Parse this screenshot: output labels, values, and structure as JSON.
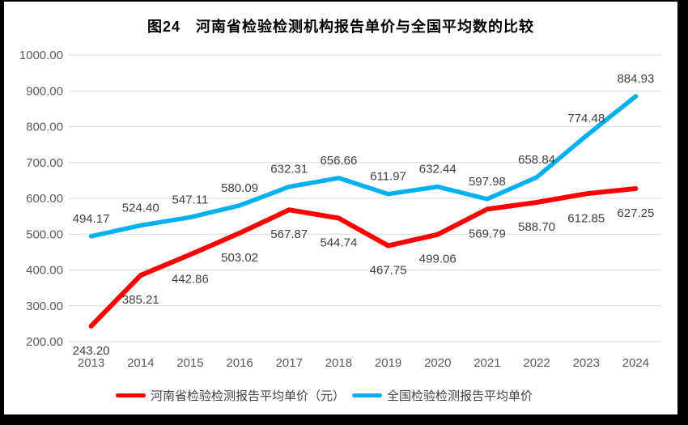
{
  "chart_data": {
    "type": "line",
    "title": "图24　河南省检验检测机构报告单价与全国平均数的比较",
    "categories": [
      "2013",
      "2014",
      "2015",
      "2016",
      "2017",
      "2018",
      "2019",
      "2020",
      "2021",
      "2022",
      "2023",
      "2024"
    ],
    "series": [
      {
        "name": "河南省检验检测报告平均单价（元）",
        "color": "#FF0000",
        "line_width": 6,
        "label_position": "below",
        "values": [
          243.2,
          385.21,
          442.86,
          503.02,
          567.87,
          544.74,
          467.75,
          499.06,
          569.79,
          588.7,
          612.85,
          627.25
        ]
      },
      {
        "name": "全国检验检测报告平均单价",
        "color": "#00B0F0",
        "line_width": 5.5,
        "label_position": "above",
        "values": [
          494.17,
          524.4,
          547.11,
          580.09,
          632.31,
          656.66,
          611.97,
          632.44,
          597.98,
          658.84,
          774.48,
          884.93
        ]
      }
    ],
    "ylim": [
      200,
      1000
    ],
    "ytick_step": 100,
    "ytick_labels": [
      "200.00",
      "300.00",
      "400.00",
      "500.00",
      "600.00",
      "700.00",
      "800.00",
      "900.00",
      "1000.00"
    ],
    "grid": true,
    "legend_position": "bottom",
    "gridline_color": "#D9D9D9",
    "tick_label_color": "#595959",
    "data_label_color": "#404040",
    "frame_border_color": "#000000"
  }
}
